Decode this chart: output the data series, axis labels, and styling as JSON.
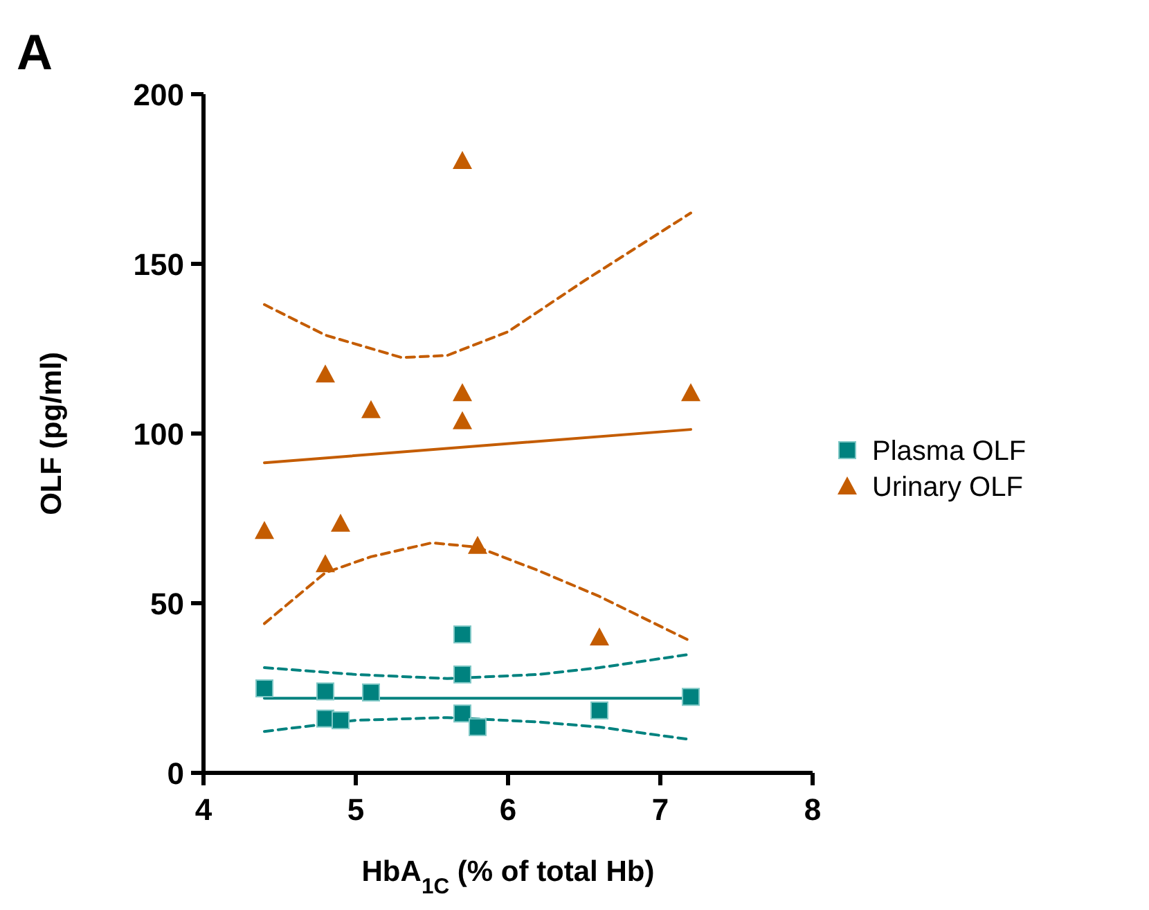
{
  "chart_data": {
    "type": "scatter",
    "title": "A",
    "xlabel": "HbA$_{1C}$ (% of total Hb)",
    "ylabel": "OLF (pg/ml)",
    "xlim": [
      4,
      8
    ],
    "xticks": [
      4,
      5,
      6,
      7,
      8
    ],
    "ylim": [
      0,
      200
    ],
    "yticks": [
      0,
      50,
      100,
      150,
      200
    ],
    "grid": false,
    "legend": "right",
    "series": [
      {
        "name": "Plasma OLF",
        "marker": "square",
        "color": "#00827f",
        "x": [
          4.4,
          4.8,
          5.1,
          5.7,
          5.7,
          4.8,
          4.9,
          5.7,
          5.8,
          6.6,
          7.2
        ],
        "values": [
          24.9,
          24,
          23.7,
          40.8,
          29,
          16,
          15.5,
          17.5,
          13.5,
          18.4,
          22.4
        ]
      },
      {
        "name": "Urinary OLF",
        "marker": "triangle",
        "color": "#c45c00",
        "x": [
          4.4,
          4.8,
          4.8,
          4.9,
          5.1,
          5.7,
          5.7,
          5.7,
          5.8,
          6.6,
          7.2
        ],
        "values": [
          71.4,
          117.5,
          61.6,
          73.5,
          107,
          180.4,
          112,
          103.7,
          67,
          40,
          112
        ]
      },
      {
        "type": "line",
        "color": "#00827f",
        "line_style": "solid",
        "x": [
          4.4,
          7.2
        ],
        "values": [
          22,
          22
        ]
      },
      {
        "type": "line",
        "color": "#00827f",
        "line_style": "dashed",
        "x": [
          4.4,
          5.0,
          5.6,
          6.2,
          6.6,
          7.2
        ],
        "values": [
          31,
          29,
          27.8,
          29,
          31,
          35
        ]
      },
      {
        "type": "line",
        "color": "#00827f",
        "line_style": "dashed",
        "x": [
          4.4,
          5.0,
          5.6,
          6.2,
          6.6,
          7.2
        ],
        "values": [
          12.2,
          15.5,
          16.3,
          15,
          13.5,
          9.8
        ]
      },
      {
        "type": "line",
        "color": "#c45c00",
        "line_style": "solid",
        "x": [
          4.4,
          7.2
        ],
        "values": [
          91.4,
          101.2
        ]
      },
      {
        "type": "line",
        "color": "#c45c00",
        "line_style": "dashed",
        "x": [
          4.4,
          4.8,
          5.3,
          5.6,
          6.0,
          6.5,
          7.2
        ],
        "values": [
          138,
          129,
          122.4,
          123,
          130,
          145,
          165
        ]
      },
      {
        "type": "line",
        "color": "#c45c00",
        "line_style": "dashed",
        "x": [
          4.4,
          4.8,
          5.1,
          5.5,
          5.8,
          6.2,
          6.6,
          7.2
        ],
        "values": [
          44,
          59,
          63.7,
          67.8,
          66.5,
          59.6,
          52,
          38.8
        ]
      }
    ]
  }
}
